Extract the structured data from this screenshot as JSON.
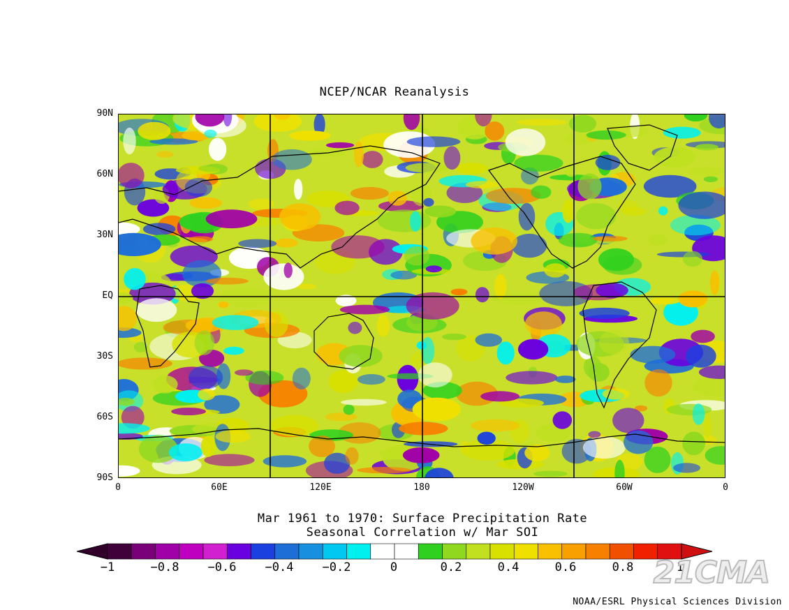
{
  "title": "NCEP/NCAR Reanalysis",
  "y_axis_labels": [
    "90N",
    "60N",
    "30N",
    "EQ",
    "30S",
    "60S",
    "90S"
  ],
  "x_axis_labels": [
    "0",
    "60E",
    "120E",
    "180",
    "120W",
    "60W",
    "0"
  ],
  "subtitle_line1": "Mar 1961 to 1970: Surface Precipitation Rate",
  "subtitle_line2": "Seasonal Correlation w/ Mar SOI",
  "colorbar": {
    "tick_labels": [
      "−1",
      "−0.8",
      "−0.6",
      "−0.4",
      "−0.2",
      "0",
      "0.2",
      "0.4",
      "0.6",
      "0.8",
      "1"
    ],
    "colors": [
      "#40003a",
      "#7a007a",
      "#a000a8",
      "#c000c0",
      "#d020d0",
      "#6a00e0",
      "#1a40e0",
      "#1e6ed8",
      "#1890e0",
      "#00c8f0",
      "#00f0f0",
      "#ffffff",
      "#ffffff",
      "#30d020",
      "#90d820",
      "#c0e020",
      "#d8e000",
      "#f0e000",
      "#f8c000",
      "#f8a000",
      "#f88000",
      "#f05000",
      "#f02000",
      "#e01010"
    ],
    "left_arrow_color": "#30002a",
    "right_arrow_color": "#d01010"
  },
  "credit": "NOAA/ESRL Physical Sciences Division",
  "watermark": "21CMA"
}
